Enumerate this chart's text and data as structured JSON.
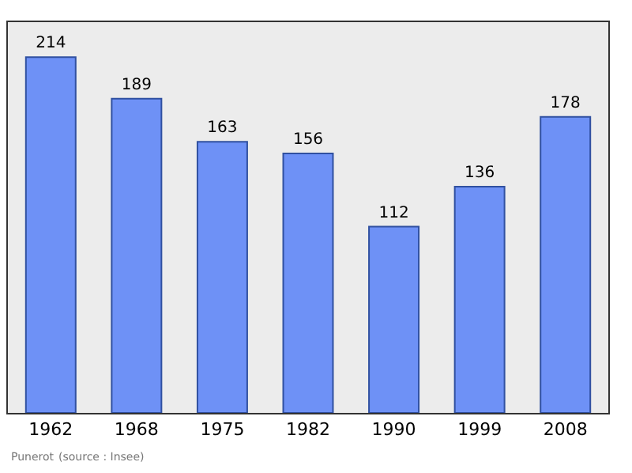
{
  "chart_data": {
    "type": "bar",
    "categories": [
      "1962",
      "1968",
      "1975",
      "1982",
      "1990",
      "1999",
      "2008"
    ],
    "values": [
      214,
      189,
      163,
      156,
      112,
      136,
      178
    ],
    "color": "#6e91f6",
    "data_labels": true,
    "ylim": [
      0,
      235
    ],
    "tick_labels": "x",
    "grid": false,
    "legend": false,
    "annotations": [
      "Punerot",
      "(source : Insee)"
    ]
  }
}
